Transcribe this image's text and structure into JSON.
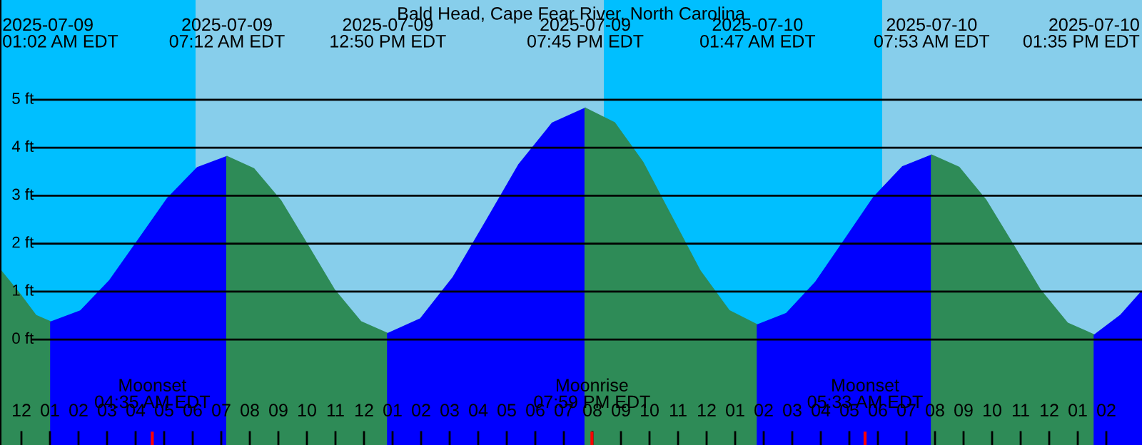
{
  "chart_data": {
    "type": "area",
    "title": "Bald Head, Cape Fear River, North Carolina",
    "series": [
      {
        "color": "#2e8b57",
        "x": [
          "2025-07-08T23:15",
          "2025-07-09T00:00",
          "2025-07-09T00:30",
          "2025-07-09T01:02"
        ],
        "values": [
          1.45,
          0.9,
          0.5,
          0.36
        ]
      },
      {
        "color": "#0000ff",
        "x": [
          "2025-07-09T01:02",
          "2025-07-09T02:04",
          "2025-07-09T03:05",
          "2025-07-09T04:07",
          "2025-07-09T05:08",
          "2025-07-09T06:10",
          "2025-07-09T07:12"
        ],
        "values": [
          0.36,
          0.59,
          1.22,
          2.09,
          2.95,
          3.58,
          3.81
        ]
      },
      {
        "color": "#2e8b57",
        "x": [
          "2025-07-09T07:12",
          "2025-07-09T08:08",
          "2025-07-09T09:05",
          "2025-07-09T10:01",
          "2025-07-09T10:57",
          "2025-07-09T11:53",
          "2025-07-09T12:50"
        ],
        "values": [
          3.81,
          3.56,
          2.89,
          1.97,
          1.04,
          0.37,
          0.12
        ]
      },
      {
        "color": "#0000ff",
        "x": [
          "2025-07-09T12:50",
          "2025-07-09T13:59",
          "2025-07-09T15:08",
          "2025-07-09T16:17",
          "2025-07-09T17:26",
          "2025-07-09T18:36",
          "2025-07-09T19:45"
        ],
        "values": [
          0.12,
          0.43,
          1.3,
          2.47,
          3.65,
          4.51,
          4.82
        ]
      },
      {
        "color": "#2e8b57",
        "x": [
          "2025-07-09T19:45",
          "2025-07-09T20:46",
          "2025-07-09T21:46",
          "2025-07-09T22:46",
          "2025-07-09T23:46",
          "2025-07-10T00:47",
          "2025-07-10T01:47"
        ],
        "values": [
          4.82,
          4.52,
          3.69,
          2.56,
          1.43,
          0.6,
          0.3
        ]
      },
      {
        "color": "#0000ff",
        "x": [
          "2025-07-10T01:47",
          "2025-07-10T02:48",
          "2025-07-10T03:49",
          "2025-07-10T04:50",
          "2025-07-10T05:51",
          "2025-07-10T06:52",
          "2025-07-10T07:53"
        ],
        "values": [
          0.3,
          0.54,
          1.19,
          2.07,
          2.96,
          3.6,
          3.84
        ]
      },
      {
        "color": "#2e8b57",
        "x": [
          "2025-07-10T07:53",
          "2025-07-10T08:50",
          "2025-07-10T09:47",
          "2025-07-10T10:44",
          "2025-07-10T11:41",
          "2025-07-10T12:38",
          "2025-07-10T13:35"
        ],
        "values": [
          3.84,
          3.59,
          2.9,
          1.97,
          1.03,
          0.34,
          0.09
        ]
      },
      {
        "color": "#0000ff",
        "x": [
          "2025-07-10T13:35",
          "2025-07-10T14:30",
          "2025-07-10T15:15"
        ],
        "values": [
          0.09,
          0.5,
          1.0
        ]
      }
    ],
    "bands": [
      {
        "axis": "x",
        "from": "2025-07-08T23:15",
        "to": "2025-07-09T06:06",
        "color": "#00bfff"
      },
      {
        "axis": "x",
        "from": "2025-07-09T06:06",
        "to": "2025-07-09T20:24",
        "color": "#87ceeb"
      },
      {
        "axis": "x",
        "from": "2025-07-09T20:24",
        "to": "2025-07-10T06:09",
        "color": "#00bfff"
      },
      {
        "axis": "x",
        "from": "2025-07-10T06:09",
        "to": "2025-07-10T15:15",
        "color": "#87ceeb"
      }
    ],
    "ref_lines": [
      {
        "axis": "x",
        "value": "2025-07-09T04:35",
        "label": "Moonset\n04:35 AM EDT",
        "color": "#ff0000"
      },
      {
        "axis": "x",
        "value": "2025-07-09T19:59",
        "label": "Moonrise\n07:59 PM EDT",
        "color": "#ff0000"
      },
      {
        "axis": "x",
        "value": "2025-07-10T05:33",
        "label": "Moonset\n05:33 AM EDT",
        "color": "#ff0000"
      }
    ],
    "annotations": [
      "2025-07-09\n01:02 AM EDT",
      "2025-07-09\n07:12 AM EDT",
      "2025-07-09\n12:50 PM EDT",
      "2025-07-09\n07:45 PM EDT",
      "2025-07-10\n01:47 AM EDT",
      "2025-07-10\n07:53 AM EDT",
      "2025-07-10\n01:35 PM EDT"
    ],
    "xlim": [
      "2025-07-08T23:15",
      "2025-07-10T15:15"
    ],
    "xticks": [
      {
        "value": "2025-07-09T00:00",
        "label": "12"
      },
      {
        "value": "2025-07-09T01:00",
        "label": "01"
      },
      {
        "value": "2025-07-09T02:00",
        "label": "02"
      },
      {
        "value": "2025-07-09T03:00",
        "label": "03"
      },
      {
        "value": "2025-07-09T04:00",
        "label": "04"
      },
      {
        "value": "2025-07-09T05:00",
        "label": "05"
      },
      {
        "value": "2025-07-09T06:00",
        "label": "06"
      },
      {
        "value": "2025-07-09T07:00",
        "label": "07"
      },
      {
        "value": "2025-07-09T08:00",
        "label": "08"
      },
      {
        "value": "2025-07-09T09:00",
        "label": "09"
      },
      {
        "value": "2025-07-09T10:00",
        "label": "10"
      },
      {
        "value": "2025-07-09T11:00",
        "label": "11"
      },
      {
        "value": "2025-07-09T12:00",
        "label": "12"
      },
      {
        "value": "2025-07-09T13:00",
        "label": "01"
      },
      {
        "value": "2025-07-09T14:00",
        "label": "02"
      },
      {
        "value": "2025-07-09T15:00",
        "label": "03"
      },
      {
        "value": "2025-07-09T16:00",
        "label": "04"
      },
      {
        "value": "2025-07-09T17:00",
        "label": "05"
      },
      {
        "value": "2025-07-09T18:00",
        "label": "06"
      },
      {
        "value": "2025-07-09T19:00",
        "label": "07"
      },
      {
        "value": "2025-07-09T20:00",
        "label": "08"
      },
      {
        "value": "2025-07-09T21:00",
        "label": "09"
      },
      {
        "value": "2025-07-09T22:00",
        "label": "10"
      },
      {
        "value": "2025-07-09T23:00",
        "label": "11"
      },
      {
        "value": "2025-07-10T00:00",
        "label": "12"
      },
      {
        "value": "2025-07-10T01:00",
        "label": "01"
      },
      {
        "value": "2025-07-10T02:00",
        "label": "02"
      },
      {
        "value": "2025-07-10T03:00",
        "label": "03"
      },
      {
        "value": "2025-07-10T04:00",
        "label": "04"
      },
      {
        "value": "2025-07-10T05:00",
        "label": "05"
      },
      {
        "value": "2025-07-10T06:00",
        "label": "06"
      },
      {
        "value": "2025-07-10T07:00",
        "label": "07"
      },
      {
        "value": "2025-07-10T08:00",
        "label": "08"
      },
      {
        "value": "2025-07-10T09:00",
        "label": "09"
      },
      {
        "value": "2025-07-10T10:00",
        "label": "10"
      },
      {
        "value": "2025-07-10T11:00",
        "label": "11"
      },
      {
        "value": "2025-07-10T12:00",
        "label": "12"
      },
      {
        "value": "2025-07-10T13:00",
        "label": "01"
      },
      {
        "value": "2025-07-10T14:00",
        "label": "02"
      }
    ],
    "ylim": [
      -2.2,
      7.08
    ],
    "yticks": [
      {
        "value": 0,
        "label": "0 ft"
      },
      {
        "value": 1,
        "label": "1 ft"
      },
      {
        "value": 2,
        "label": "2 ft"
      },
      {
        "value": 3,
        "label": "3 ft"
      },
      {
        "value": 4,
        "label": "4 ft"
      },
      {
        "value": 5,
        "label": "5 ft"
      }
    ],
    "grid": "y"
  }
}
